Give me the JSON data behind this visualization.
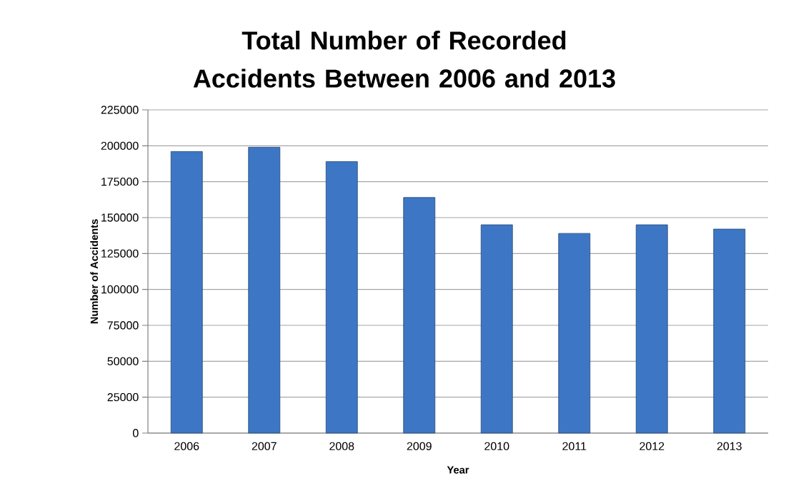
{
  "chart_data": {
    "type": "bar",
    "title": "Total Number of Recorded Accidents Between 2006 and 2013",
    "xlabel": "Year",
    "ylabel": "Number of Accidents",
    "categories": [
      "2006",
      "2007",
      "2008",
      "2009",
      "2010",
      "2011",
      "2012",
      "2013"
    ],
    "values": [
      196000,
      199000,
      189000,
      164000,
      145000,
      139000,
      145000,
      142000
    ],
    "color": "#3d76c4",
    "ylim": [
      0,
      225000
    ],
    "yticks": [
      0,
      25000,
      50000,
      75000,
      100000,
      125000,
      150000,
      175000,
      200000,
      225000
    ],
    "grid": "y"
  }
}
